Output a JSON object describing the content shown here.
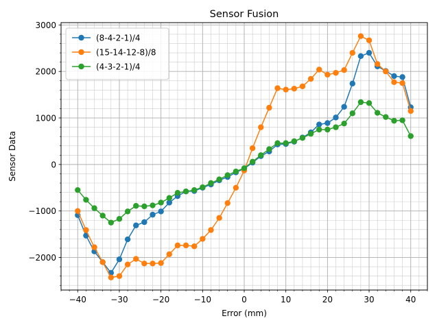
{
  "chart_data": {
    "type": "line",
    "title": "Sensor Fusion",
    "xlabel": "Error (mm)",
    "ylabel": "Sensor Data",
    "xlim": [
      -44,
      44
    ],
    "ylim": [
      -2700,
      3050
    ],
    "xticks": [
      -40,
      -30,
      -20,
      -10,
      0,
      10,
      20,
      30,
      40
    ],
    "xtick_labels": [
      "−40",
      "−30",
      "−20",
      "−10",
      "0",
      "10",
      "20",
      "30",
      "40"
    ],
    "yticks": [
      -2000,
      -1000,
      0,
      1000,
      2000,
      3000
    ],
    "ytick_labels": [
      "−2000",
      "−1000",
      "0",
      "1000",
      "2000",
      "3000"
    ],
    "x_minor_step": 2,
    "y_minor_step": 200,
    "grid": true,
    "legend_position": "upper-left",
    "x": [
      -40,
      -38,
      -36,
      -34,
      -32,
      -30,
      -28,
      -26,
      -24,
      -22,
      -20,
      -18,
      -16,
      -14,
      -12,
      -10,
      -8,
      -6,
      -4,
      -2,
      0,
      2,
      4,
      6,
      8,
      10,
      12,
      14,
      16,
      18,
      20,
      22,
      24,
      26,
      28,
      30,
      32,
      34,
      36,
      38,
      40
    ],
    "series": [
      {
        "name": "(8-4-2-1)/4",
        "color": "#1f77b4",
        "values": [
          -1090,
          -1530,
          -1870,
          -2100,
          -2330,
          -2040,
          -1610,
          -1310,
          -1240,
          -1080,
          -1010,
          -820,
          -680,
          -580,
          -570,
          -500,
          -430,
          -340,
          -270,
          -170,
          -90,
          40,
          180,
          280,
          430,
          440,
          490,
          580,
          690,
          860,
          890,
          1010,
          1240,
          1740,
          2330,
          2400,
          2110,
          2010,
          1900,
          1880,
          1230
        ]
      },
      {
        "name": "(15-14-12-8)/8",
        "color": "#ff7f0e",
        "values": [
          -1000,
          -1410,
          -1780,
          -2100,
          -2430,
          -2400,
          -2150,
          -2030,
          -2130,
          -2130,
          -2120,
          -1930,
          -1740,
          -1740,
          -1760,
          -1600,
          -1410,
          -1150,
          -830,
          -500,
          -130,
          350,
          800,
          1220,
          1640,
          1610,
          1630,
          1680,
          1840,
          2040,
          1930,
          1970,
          2030,
          2400,
          2760,
          2670,
          2160,
          2000,
          1770,
          1750,
          1150
        ]
      },
      {
        "name": "(4-3-2-1)/4",
        "color": "#2ca02c",
        "values": [
          -550,
          -760,
          -940,
          -1100,
          -1250,
          -1170,
          -1010,
          -890,
          -900,
          -880,
          -820,
          -720,
          -610,
          -580,
          -550,
          -490,
          -400,
          -320,
          -230,
          -150,
          -80,
          60,
          200,
          330,
          460,
          460,
          500,
          570,
          660,
          750,
          750,
          800,
          880,
          1100,
          1340,
          1320,
          1110,
          1020,
          940,
          950,
          610
        ]
      }
    ]
  }
}
